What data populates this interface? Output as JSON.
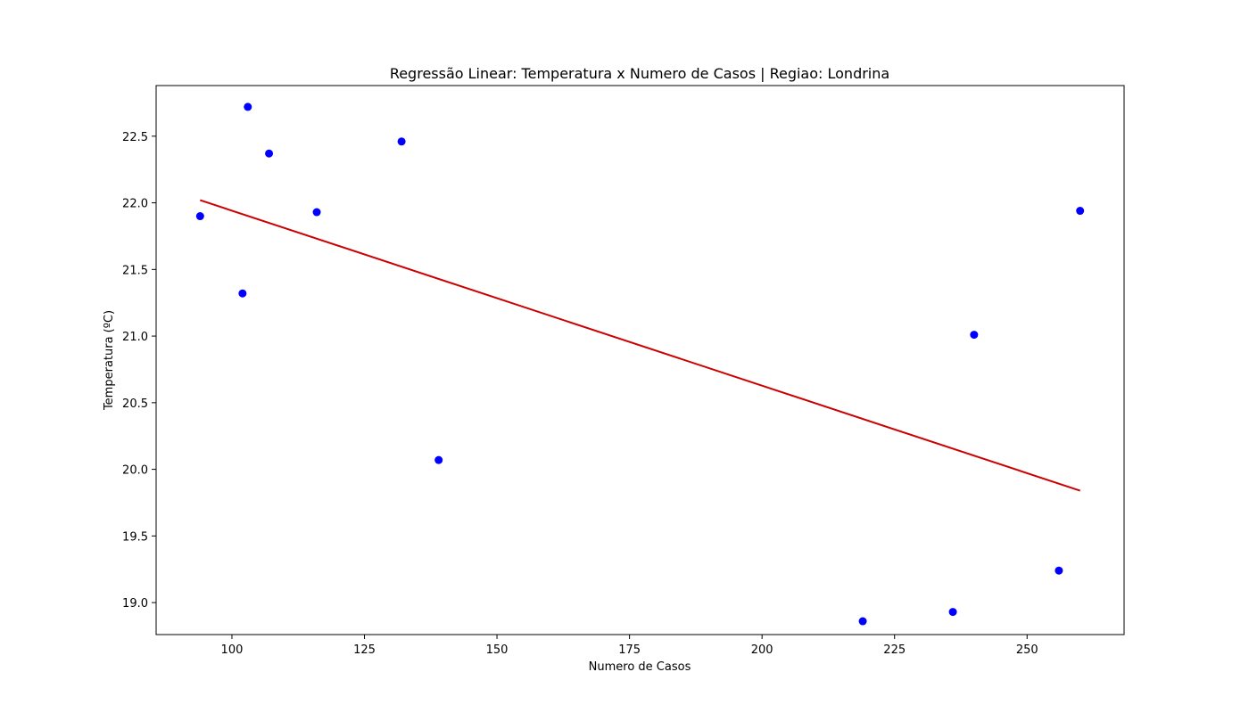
{
  "chart_data": {
    "type": "scatter",
    "title": "Regressão Linear: Temperatura x Numero de Casos | Regiao: Londrina",
    "xlabel": "Numero de Casos",
    "ylabel": "Temperatura (ºC)",
    "xlim": [
      85.7,
      268.3
    ],
    "ylim": [
      18.76,
      22.88
    ],
    "xticks": [
      100,
      125,
      150,
      175,
      200,
      225,
      250
    ],
    "yticks": [
      19.0,
      19.5,
      20.0,
      20.5,
      21.0,
      21.5,
      22.0,
      22.5
    ],
    "xtick_labels": [
      "100",
      "125",
      "150",
      "175",
      "200",
      "225",
      "250"
    ],
    "ytick_labels": [
      "19.0",
      "19.5",
      "20.0",
      "20.5",
      "21.0",
      "21.5",
      "22.0",
      "22.5"
    ],
    "grid": false,
    "series": [
      {
        "kind": "points",
        "color": "#0000ff",
        "points": [
          {
            "x": 94,
            "y": 21.9
          },
          {
            "x": 102,
            "y": 21.32
          },
          {
            "x": 103,
            "y": 22.72
          },
          {
            "x": 107,
            "y": 22.37
          },
          {
            "x": 116,
            "y": 21.93
          },
          {
            "x": 132,
            "y": 22.46
          },
          {
            "x": 139,
            "y": 20.07
          },
          {
            "x": 219,
            "y": 18.86
          },
          {
            "x": 236,
            "y": 18.93
          },
          {
            "x": 240,
            "y": 21.01
          },
          {
            "x": 256,
            "y": 19.24
          },
          {
            "x": 260,
            "y": 21.94
          }
        ]
      },
      {
        "kind": "regression-line",
        "color": "#cc0000",
        "points": [
          {
            "x": 94,
            "y": 22.02
          },
          {
            "x": 260,
            "y": 19.84
          }
        ]
      }
    ]
  }
}
